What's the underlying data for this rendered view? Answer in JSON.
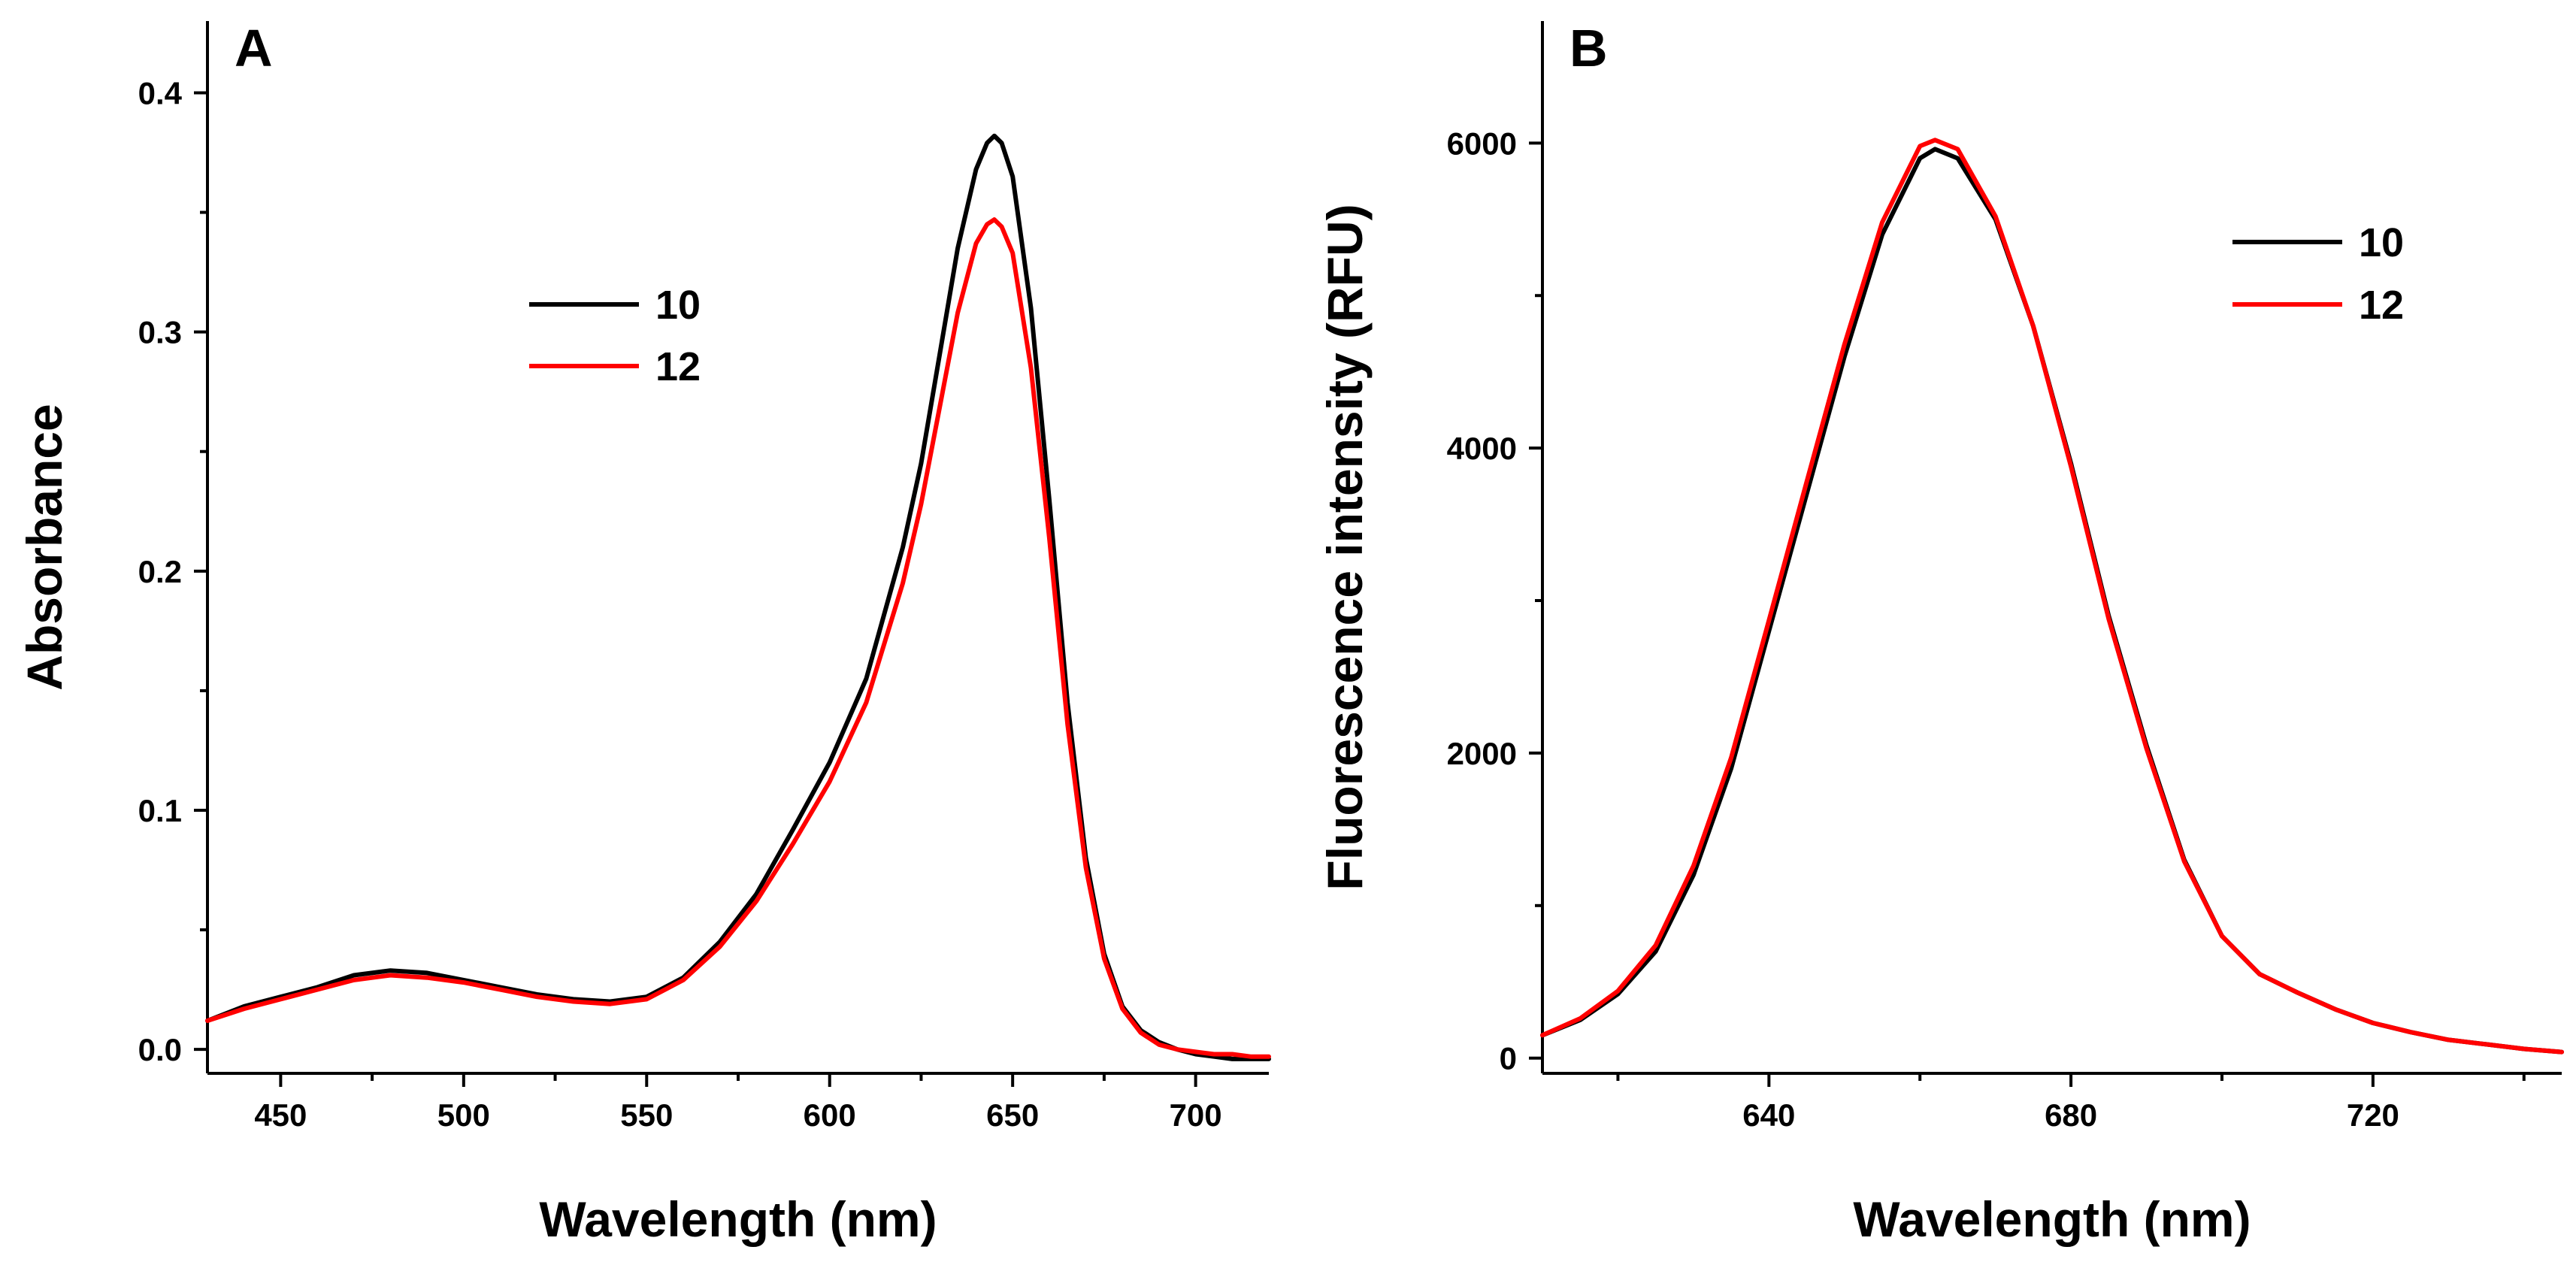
{
  "chart_data": [
    {
      "type": "line",
      "panel": "A",
      "xlabel": "Wavelength (nm)",
      "ylabel": "Absorbance",
      "xlim": [
        430,
        720
      ],
      "ylim": [
        -0.01,
        0.43
      ],
      "xticks": [
        450,
        500,
        550,
        600,
        650,
        700
      ],
      "xtick_labels": [
        "450",
        "500",
        "550",
        "600",
        "650",
        "700"
      ],
      "yticks": [
        0.0,
        0.1,
        0.2,
        0.3,
        0.4
      ],
      "ytick_labels": [
        "0.0",
        "0.1",
        "0.2",
        "0.3",
        "0.4"
      ],
      "legend_position": "upper-middle",
      "series": [
        {
          "name": "10",
          "color": "#000000",
          "x": [
            430,
            440,
            450,
            460,
            470,
            480,
            490,
            500,
            510,
            520,
            530,
            540,
            550,
            560,
            570,
            580,
            590,
            600,
            610,
            620,
            625,
            630,
            635,
            640,
            643,
            645,
            647,
            650,
            655,
            660,
            665,
            670,
            675,
            680,
            685,
            690,
            695,
            700,
            705,
            710,
            715,
            720
          ],
          "y": [
            0.012,
            0.018,
            0.022,
            0.026,
            0.031,
            0.033,
            0.032,
            0.029,
            0.026,
            0.023,
            0.021,
            0.02,
            0.022,
            0.03,
            0.045,
            0.065,
            0.092,
            0.12,
            0.155,
            0.21,
            0.245,
            0.29,
            0.335,
            0.368,
            0.379,
            0.382,
            0.379,
            0.365,
            0.31,
            0.23,
            0.145,
            0.08,
            0.04,
            0.018,
            0.008,
            0.003,
            0.0,
            -0.002,
            -0.003,
            -0.004,
            -0.004,
            -0.004
          ]
        },
        {
          "name": "12",
          "color": "#ff0000",
          "x": [
            430,
            440,
            450,
            460,
            470,
            480,
            490,
            500,
            510,
            520,
            530,
            540,
            550,
            560,
            570,
            580,
            590,
            600,
            610,
            620,
            625,
            630,
            635,
            640,
            643,
            645,
            647,
            650,
            655,
            660,
            665,
            670,
            675,
            680,
            685,
            690,
            695,
            700,
            705,
            710,
            715,
            720
          ],
          "y": [
            0.012,
            0.017,
            0.021,
            0.025,
            0.029,
            0.031,
            0.03,
            0.028,
            0.025,
            0.022,
            0.02,
            0.019,
            0.021,
            0.029,
            0.043,
            0.062,
            0.086,
            0.112,
            0.145,
            0.195,
            0.228,
            0.268,
            0.308,
            0.337,
            0.345,
            0.347,
            0.344,
            0.333,
            0.285,
            0.214,
            0.136,
            0.076,
            0.038,
            0.017,
            0.007,
            0.002,
            0.0,
            -0.001,
            -0.002,
            -0.002,
            -0.003,
            -0.003
          ]
        }
      ]
    },
    {
      "type": "line",
      "panel": "B",
      "xlabel": "Wavelength (nm)",
      "ylabel": "Fluorescence intensity (RFU)",
      "xlim": [
        610,
        745
      ],
      "ylim": [
        -100,
        6800
      ],
      "xticks": [
        640,
        680,
        720
      ],
      "xtick_labels": [
        "640",
        "680",
        "720"
      ],
      "yticks": [
        0,
        2000,
        4000,
        6000
      ],
      "ytick_labels": [
        "0",
        "2000",
        "4000",
        "6000"
      ],
      "legend_position": "top-right",
      "series": [
        {
          "name": "10",
          "color": "#000000",
          "x": [
            610,
            615,
            620,
            625,
            630,
            635,
            640,
            645,
            650,
            655,
            660,
            662,
            665,
            670,
            675,
            680,
            685,
            690,
            695,
            700,
            705,
            710,
            715,
            720,
            725,
            730,
            735,
            740,
            745
          ],
          "y": [
            150,
            250,
            420,
            700,
            1200,
            1900,
            2800,
            3700,
            4600,
            5400,
            5900,
            5960,
            5900,
            5500,
            4800,
            3900,
            2900,
            2050,
            1300,
            800,
            550,
            430,
            320,
            230,
            170,
            120,
            90,
            60,
            40
          ]
        },
        {
          "name": "12",
          "color": "#ff0000",
          "x": [
            610,
            615,
            620,
            625,
            630,
            635,
            640,
            645,
            650,
            655,
            660,
            662,
            665,
            670,
            675,
            680,
            685,
            690,
            695,
            700,
            705,
            710,
            715,
            720,
            725,
            730,
            735,
            740,
            745
          ],
          "y": [
            150,
            260,
            440,
            740,
            1260,
            1970,
            2870,
            3780,
            4680,
            5480,
            5980,
            6020,
            5960,
            5520,
            4800,
            3880,
            2880,
            2030,
            1290,
            800,
            550,
            430,
            320,
            230,
            170,
            120,
            90,
            60,
            40
          ]
        }
      ]
    }
  ]
}
